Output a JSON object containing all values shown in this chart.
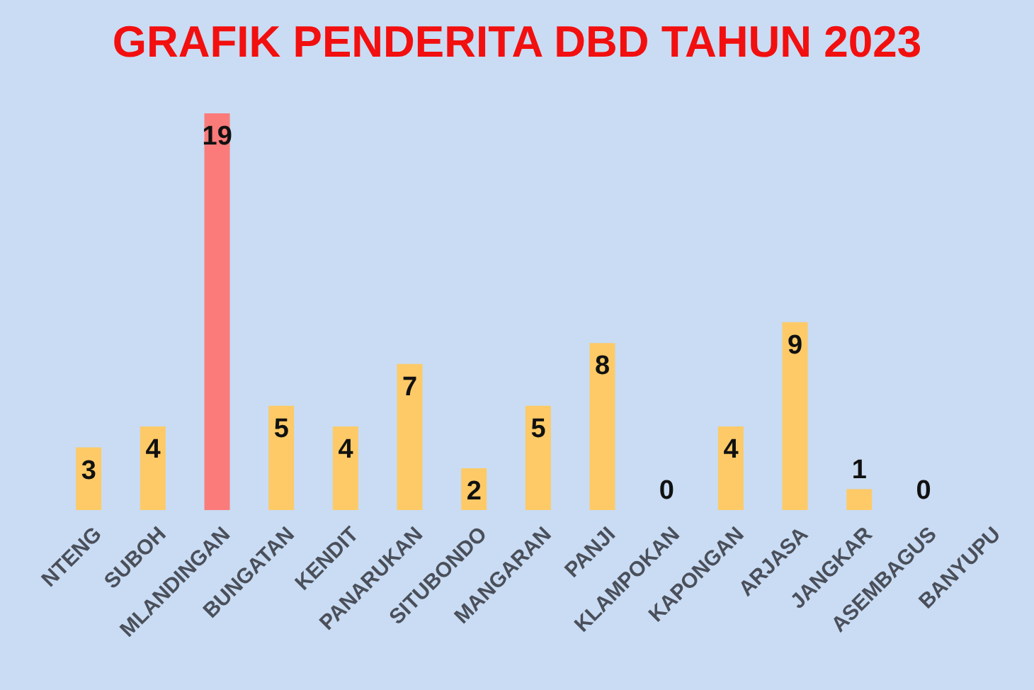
{
  "chart_data": {
    "type": "bar",
    "title": "GRAFIK PENDERITA DBD TAHUN 2023",
    "categories": [
      "NTENG",
      "SUBOH",
      "MLANDINGAN",
      "BUNGATAN",
      "KENDIT",
      "PANARUKAN",
      "SITUBONDO",
      "MANGARAN",
      "PANJI",
      "KLAMPOKAN",
      "KAPONGAN",
      "ARJASA",
      "JANGKAR",
      "ASEMBAGUS",
      "BANYUPU"
    ],
    "values": [
      3,
      4,
      19,
      5,
      4,
      7,
      2,
      5,
      8,
      0,
      4,
      9,
      1,
      0,
      null
    ],
    "data_labels": true,
    "colors": [
      "#fdca67",
      "#fdca67",
      "#fa7b7a",
      "#fdca67",
      "#fdca67",
      "#fdca67",
      "#fdca67",
      "#fdca67",
      "#fdca67",
      "#fdca67",
      "#fdca67",
      "#fdca67",
      "#fdca67",
      "#fdca67",
      "#fdca67"
    ],
    "tick_labels": "x"
  }
}
